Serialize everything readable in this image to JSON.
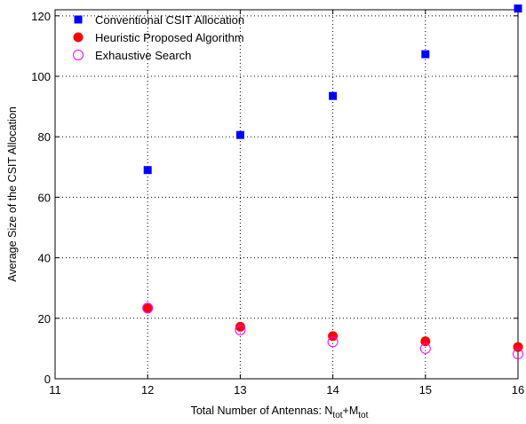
{
  "chart_data": {
    "type": "scatter",
    "title": "",
    "xlabel": {
      "main": "Total Number of Antennas: N",
      "sub1": "tot",
      "mid": "+M",
      "sub2": "tot"
    },
    "ylabel": "Average Size of the CSIT Allocation",
    "xlim": [
      11,
      16
    ],
    "ylim": [
      0,
      122
    ],
    "xticks": [
      11,
      12,
      13,
      14,
      15,
      16
    ],
    "yticks": [
      0,
      20,
      40,
      60,
      80,
      100,
      120
    ],
    "grid": true,
    "legend_position": "top-left",
    "series": [
      {
        "name": "Conventional CSIT Allocation",
        "marker": "filled-square",
        "color": "#0000ff",
        "x": [
          12,
          13,
          14,
          15,
          16
        ],
        "y": [
          69,
          80.6,
          93.5,
          107.3,
          122.4
        ]
      },
      {
        "name": "Heuristic Proposed Algorithm",
        "marker": "filled-circle",
        "color": "#ff0000",
        "x": [
          12,
          13,
          14,
          15,
          16
        ],
        "y": [
          23.2,
          17.2,
          14.1,
          12.4,
          10.5
        ]
      },
      {
        "name": "Exhaustive Search",
        "marker": "open-circle",
        "color": "#ff00ff",
        "x": [
          12,
          13,
          14,
          15,
          16
        ],
        "y": [
          23.4,
          16.1,
          12.2,
          10.0,
          8.2
        ]
      }
    ]
  }
}
